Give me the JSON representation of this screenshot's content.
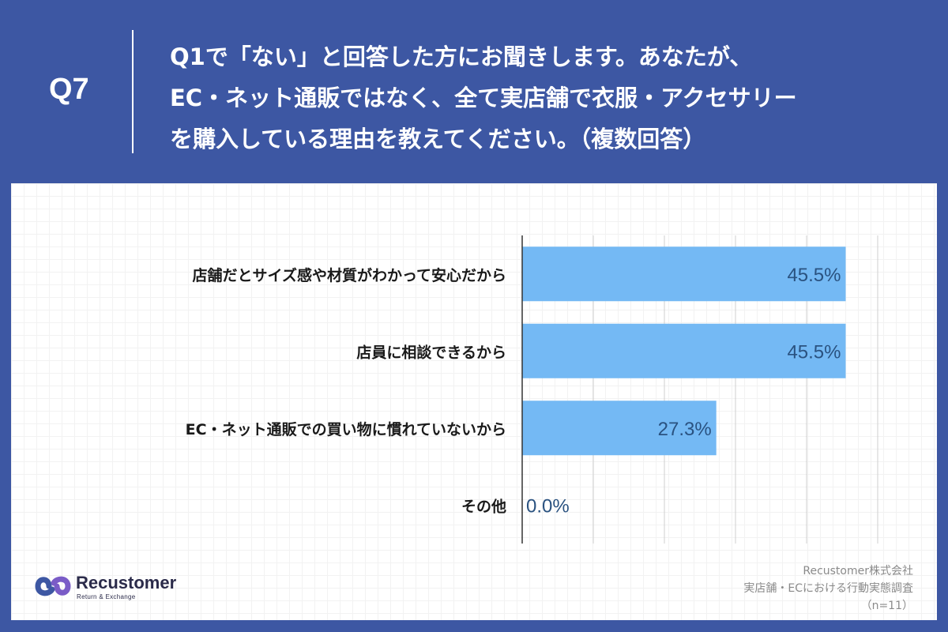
{
  "header": {
    "question_number": "Q7",
    "question_lines": [
      "Q1で「ない」と回答した方にお聞きします。あなたが、",
      "EC・ネット通販ではなく、全て実店舗で衣服・アクセサリー",
      "を購入している理由を教えてください。（複数回答）"
    ]
  },
  "chart_data": {
    "type": "bar",
    "orientation": "horizontal",
    "categories": [
      "店舗だとサイズ感や材質がわかって安心だから",
      "店員に相談できるから",
      "EC・ネット通販での買い物に慣れていないから",
      "その他"
    ],
    "values": [
      45.5,
      45.5,
      27.3,
      0.0
    ],
    "value_labels": [
      "45.5%",
      "45.5%",
      "27.3%",
      "0.0%"
    ],
    "xlim": [
      0,
      50
    ],
    "grid": true,
    "bar_color": "#74b9f4",
    "label_color": "#2a5280"
  },
  "branding": {
    "logo_name": "Recustomer",
    "logo_tagline": "Return & Exchange",
    "logo_color_1": "#3d57a3",
    "logo_color_2": "#7a5cc7"
  },
  "footer": {
    "company": "Recustomer株式会社",
    "survey": "実店舗・ECにおける行動実態調査",
    "sample": "（n=11）"
  },
  "colors": {
    "background": "#3d57a3",
    "panel": "#ffffff"
  }
}
